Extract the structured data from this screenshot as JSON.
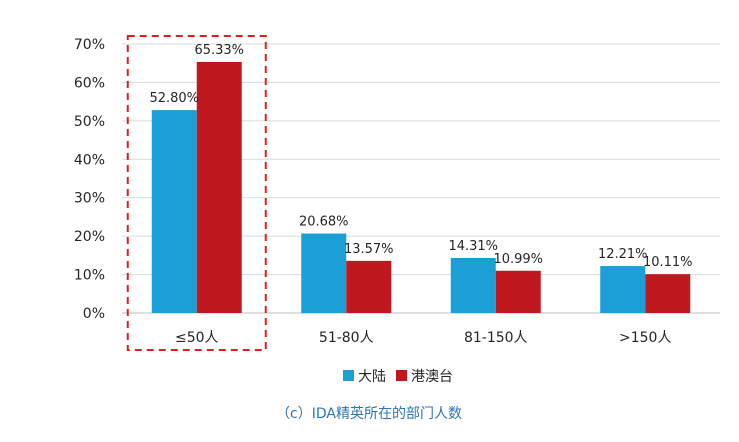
{
  "chart_data": {
    "type": "bar",
    "categories": [
      "≤50人",
      "51-80人",
      "81-150人",
      ">150人"
    ],
    "series": [
      {
        "name": "大陆",
        "values": [
          52.8,
          20.68,
          14.31,
          12.21
        ],
        "labels": [
          "52.80%",
          "20.68%",
          "14.31%",
          "12.21%"
        ]
      },
      {
        "name": "港澳台",
        "values": [
          65.33,
          13.57,
          10.99,
          10.11
        ],
        "labels": [
          "65.33%",
          "13.57%",
          "10.99%",
          "10.11%"
        ]
      }
    ],
    "ylim": [
      0,
      70
    ],
    "yticks": [
      0,
      10,
      20,
      30,
      40,
      50,
      60,
      70
    ],
    "ytick_labels": [
      "0%",
      "10%",
      "20%",
      "30%",
      "40%",
      "50%",
      "60%",
      "70%"
    ],
    "grid": true,
    "legend_position": "bottom",
    "highlight_category": "≤50人",
    "caption": "（c）IDA精英所在的部门人数"
  },
  "colors": {
    "series": [
      "#1a9fd6",
      "#c0181f"
    ],
    "highlight_border": "#e02020",
    "grid": "#d9d9d9",
    "axis": "#bfbfbf",
    "caption": "#2e75b6"
  }
}
